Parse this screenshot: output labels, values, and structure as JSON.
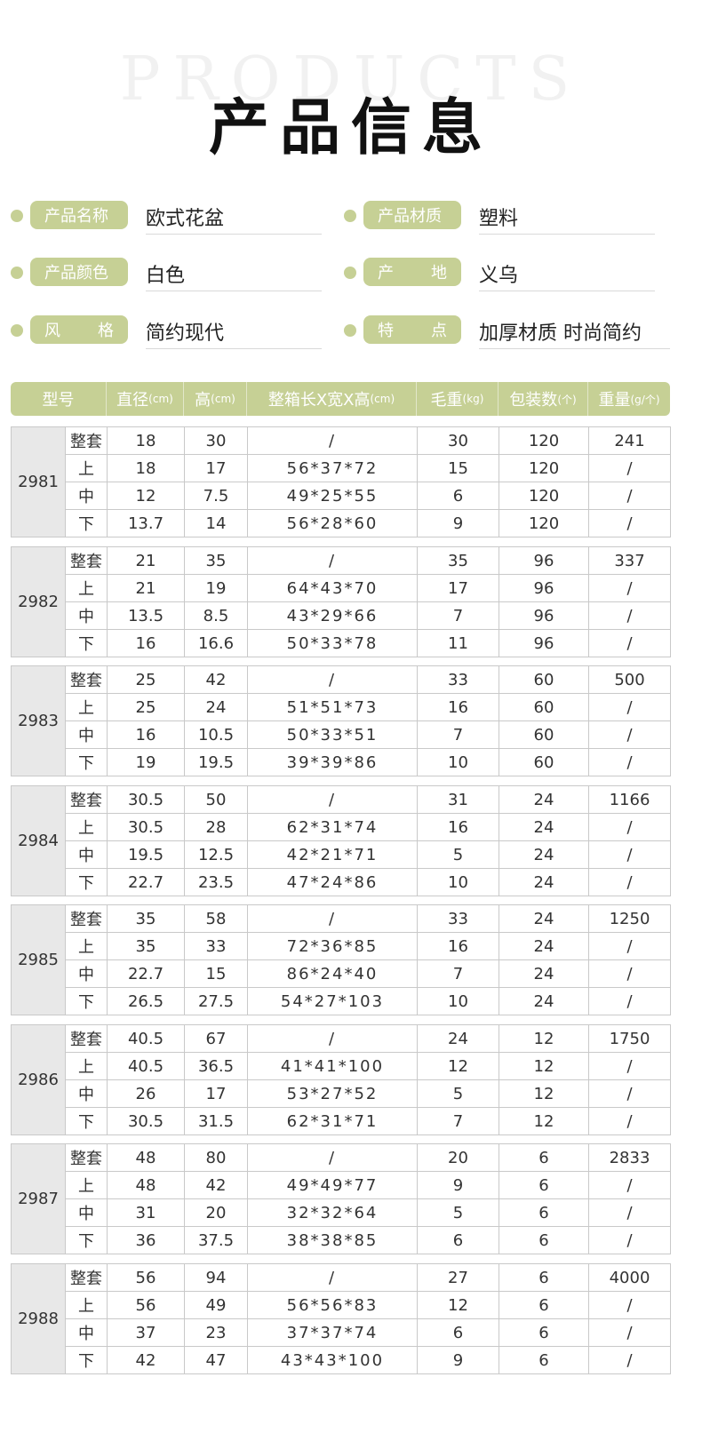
{
  "header": {
    "bg_word": "PRODUCTS",
    "title": "产品信息"
  },
  "info": {
    "name_label": "产品名称",
    "name_value": "欧式花盆",
    "material_label": "产品材质",
    "material_value": "塑料",
    "color_label": "产品颜色",
    "color_value": "白色",
    "origin_label_a": "产",
    "origin_label_b": "地",
    "origin_value": "义乌",
    "style_label_a": "风",
    "style_label_b": "格",
    "style_value": "简约现代",
    "feature_label_a": "特",
    "feature_label_b": "点",
    "feature_value": "加厚材质 时尚简约"
  },
  "table_header": {
    "model": "型号",
    "diameter": "直径",
    "diameter_unit": "(cm)",
    "height": "高",
    "height_unit": "(cm)",
    "box": "整箱长X宽X高",
    "box_unit": "(cm)",
    "weight": "毛重",
    "weight_unit": "(kg)",
    "pack": "包装数",
    "pack_unit": "(个)",
    "unit_weight": "重量",
    "unit_weight_unit": "(g/个)"
  },
  "groups": [
    {
      "model": "2981",
      "rows": [
        {
          "part": "整套",
          "d": "18",
          "h": "30",
          "box": "/",
          "w": "30",
          "pack": "120",
          "uw": "241"
        },
        {
          "part": "上",
          "d": "18",
          "h": "17",
          "box": "56*37*72",
          "w": "15",
          "pack": "120",
          "uw": "/"
        },
        {
          "part": "中",
          "d": "12",
          "h": "7.5",
          "box": "49*25*55",
          "w": "6",
          "pack": "120",
          "uw": "/"
        },
        {
          "part": "下",
          "d": "13.7",
          "h": "14",
          "box": "56*28*60",
          "w": "9",
          "pack": "120",
          "uw": "/"
        }
      ]
    },
    {
      "model": "2982",
      "rows": [
        {
          "part": "整套",
          "d": "21",
          "h": "35",
          "box": "/",
          "w": "35",
          "pack": "96",
          "uw": "337"
        },
        {
          "part": "上",
          "d": "21",
          "h": "19",
          "box": "64*43*70",
          "w": "17",
          "pack": "96",
          "uw": "/"
        },
        {
          "part": "中",
          "d": "13.5",
          "h": "8.5",
          "box": "43*29*66",
          "w": "7",
          "pack": "96",
          "uw": "/"
        },
        {
          "part": "下",
          "d": "16",
          "h": "16.6",
          "box": "50*33*78",
          "w": "11",
          "pack": "96",
          "uw": "/"
        }
      ]
    },
    {
      "model": "2983",
      "rows": [
        {
          "part": "整套",
          "d": "25",
          "h": "42",
          "box": "/",
          "w": "33",
          "pack": "60",
          "uw": "500"
        },
        {
          "part": "上",
          "d": "25",
          "h": "24",
          "box": "51*51*73",
          "w": "16",
          "pack": "60",
          "uw": "/"
        },
        {
          "part": "中",
          "d": "16",
          "h": "10.5",
          "box": "50*33*51",
          "w": "7",
          "pack": "60",
          "uw": "/"
        },
        {
          "part": "下",
          "d": "19",
          "h": "19.5",
          "box": "39*39*86",
          "w": "10",
          "pack": "60",
          "uw": "/"
        }
      ]
    },
    {
      "model": "2984",
      "rows": [
        {
          "part": "整套",
          "d": "30.5",
          "h": "50",
          "box": "/",
          "w": "31",
          "pack": "24",
          "uw": "1166"
        },
        {
          "part": "上",
          "d": "30.5",
          "h": "28",
          "box": "62*31*74",
          "w": "16",
          "pack": "24",
          "uw": "/"
        },
        {
          "part": "中",
          "d": "19.5",
          "h": "12.5",
          "box": "42*21*71",
          "w": "5",
          "pack": "24",
          "uw": "/"
        },
        {
          "part": "下",
          "d": "22.7",
          "h": "23.5",
          "box": "47*24*86",
          "w": "10",
          "pack": "24",
          "uw": "/"
        }
      ]
    },
    {
      "model": "2985",
      "rows": [
        {
          "part": "整套",
          "d": "35",
          "h": "58",
          "box": "/",
          "w": "33",
          "pack": "24",
          "uw": "1250"
        },
        {
          "part": "上",
          "d": "35",
          "h": "33",
          "box": "72*36*85",
          "w": "16",
          "pack": "24",
          "uw": "/"
        },
        {
          "part": "中",
          "d": "22.7",
          "h": "15",
          "box": "86*24*40",
          "w": "7",
          "pack": "24",
          "uw": "/"
        },
        {
          "part": "下",
          "d": "26.5",
          "h": "27.5",
          "box": "54*27*103",
          "w": "10",
          "pack": "24",
          "uw": "/"
        }
      ]
    },
    {
      "model": "2986",
      "rows": [
        {
          "part": "整套",
          "d": "40.5",
          "h": "67",
          "box": "/",
          "w": "24",
          "pack": "12",
          "uw": "1750"
        },
        {
          "part": "上",
          "d": "40.5",
          "h": "36.5",
          "box": "41*41*100",
          "w": "12",
          "pack": "12",
          "uw": "/"
        },
        {
          "part": "中",
          "d": "26",
          "h": "17",
          "box": "53*27*52",
          "w": "5",
          "pack": "12",
          "uw": "/"
        },
        {
          "part": "下",
          "d": "30.5",
          "h": "31.5",
          "box": "62*31*71",
          "w": "7",
          "pack": "12",
          "uw": "/"
        }
      ]
    },
    {
      "model": "2987",
      "rows": [
        {
          "part": "整套",
          "d": "48",
          "h": "80",
          "box": "/",
          "w": "20",
          "pack": "6",
          "uw": "2833"
        },
        {
          "part": "上",
          "d": "48",
          "h": "42",
          "box": "49*49*77",
          "w": "9",
          "pack": "6",
          "uw": "/"
        },
        {
          "part": "中",
          "d": "31",
          "h": "20",
          "box": "32*32*64",
          "w": "5",
          "pack": "6",
          "uw": "/"
        },
        {
          "part": "下",
          "d": "36",
          "h": "37.5",
          "box": "38*38*85",
          "w": "6",
          "pack": "6",
          "uw": "/"
        }
      ]
    },
    {
      "model": "2988",
      "rows": [
        {
          "part": "整套",
          "d": "56",
          "h": "94",
          "box": "/",
          "w": "27",
          "pack": "6",
          "uw": "4000"
        },
        {
          "part": "上",
          "d": "56",
          "h": "49",
          "box": "56*56*83",
          "w": "12",
          "pack": "6",
          "uw": "/"
        },
        {
          "part": "中",
          "d": "37",
          "h": "23",
          "box": "37*37*74",
          "w": "6",
          "pack": "6",
          "uw": "/"
        },
        {
          "part": "下",
          "d": "42",
          "h": "47",
          "box": "43*43*100",
          "w": "9",
          "pack": "6",
          "uw": "/"
        }
      ]
    }
  ]
}
